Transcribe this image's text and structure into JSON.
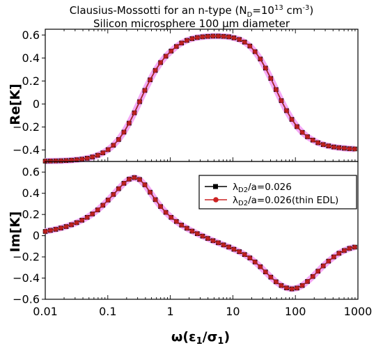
{
  "title_line1": "Clausius-Mossotti for an n-type (N",
  "title_line1_sub": "D",
  "title_line1_mid": "=10",
  "title_line1_sup": "13",
  "title_line1_end": " cm",
  "title_line1_sup2": "-3",
  "title_line1_close": ")",
  "title_line2": "Silicon microsphere 100 µm diameter",
  "colors": {
    "series1": "#000000",
    "series2": "#cc2222",
    "halo": "#f4a0f4"
  },
  "chart_data": [
    {
      "type": "line",
      "ylabel": "Re[K]",
      "xscale": "log",
      "xlim": [
        0.01,
        1000
      ],
      "ylim": [
        -0.5,
        0.65
      ],
      "yticks": [
        -0.4,
        -0.2,
        0,
        0.2,
        0.4,
        0.6
      ],
      "ytick_labels": [
        "−0.4",
        "−0.2",
        "0",
        "0.2",
        "0.4",
        "0.6"
      ],
      "x": [
        0.01,
        0.0121,
        0.0147,
        0.0178,
        0.0216,
        0.0262,
        0.0318,
        0.0386,
        0.0468,
        0.0568,
        0.0689,
        0.0835,
        0.101,
        0.123,
        0.149,
        0.181,
        0.219,
        0.266,
        0.323,
        0.391,
        0.475,
        0.576,
        0.698,
        0.847,
        1.03,
        1.25,
        1.51,
        1.84,
        2.23,
        2.7,
        3.28,
        3.97,
        4.82,
        5.85,
        7.1,
        8.61,
        10.4,
        12.7,
        15.4,
        18.7,
        22.6,
        27.5,
        33.3,
        40.4,
        49.0,
        59.5,
        72.2,
        87.6,
        106,
        129,
        156,
        190,
        230,
        279,
        339,
        411,
        498,
        605,
        733,
        890
      ],
      "series": [
        {
          "name": "λD2/a=0.026",
          "values": [
            -0.497,
            -0.496,
            -0.495,
            -0.494,
            -0.492,
            -0.489,
            -0.485,
            -0.48,
            -0.472,
            -0.461,
            -0.446,
            -0.425,
            -0.397,
            -0.359,
            -0.309,
            -0.245,
            -0.167,
            -0.077,
            0.02,
            0.118,
            0.21,
            0.292,
            0.36,
            0.415,
            0.46,
            0.5,
            0.53,
            0.553,
            0.568,
            0.578,
            0.584,
            0.588,
            0.59,
            0.59,
            0.588,
            0.584,
            0.575,
            0.561,
            0.538,
            0.504,
            0.455,
            0.391,
            0.312,
            0.222,
            0.125,
            0.029,
            -0.058,
            -0.134,
            -0.197,
            -0.247,
            -0.285,
            -0.314,
            -0.337,
            -0.353,
            -0.365,
            -0.374,
            -0.38,
            -0.385,
            -0.389,
            -0.391
          ]
        },
        {
          "name": "λD2/a=0.026(thin EDL)",
          "values": [
            -0.497,
            -0.496,
            -0.495,
            -0.494,
            -0.492,
            -0.489,
            -0.485,
            -0.48,
            -0.472,
            -0.461,
            -0.446,
            -0.425,
            -0.397,
            -0.359,
            -0.309,
            -0.245,
            -0.167,
            -0.077,
            0.02,
            0.118,
            0.21,
            0.292,
            0.36,
            0.415,
            0.46,
            0.5,
            0.53,
            0.553,
            0.568,
            0.578,
            0.584,
            0.588,
            0.59,
            0.59,
            0.588,
            0.584,
            0.575,
            0.561,
            0.538,
            0.504,
            0.455,
            0.391,
            0.312,
            0.222,
            0.125,
            0.029,
            -0.058,
            -0.134,
            -0.197,
            -0.247,
            -0.285,
            -0.314,
            -0.337,
            -0.353,
            -0.365,
            -0.374,
            -0.38,
            -0.385,
            -0.389,
            -0.391
          ]
        }
      ]
    },
    {
      "type": "line",
      "xlabel": "ω(ε1/σ1)",
      "ylabel": "Im[K]",
      "xscale": "log",
      "xlim": [
        0.01,
        1000
      ],
      "ylim": [
        -0.6,
        0.7
      ],
      "xticks": [
        0.01,
        0.1,
        1,
        10,
        100,
        1000
      ],
      "xtick_labels": [
        "0.01",
        "0.1",
        "1",
        "10",
        "100",
        "1000"
      ],
      "yticks": [
        -0.6,
        -0.4,
        -0.2,
        0,
        0.2,
        0.4,
        0.6
      ],
      "ytick_labels": [
        "−0.6",
        "−0.4",
        "−0.2",
        "0",
        "0.2",
        "0.4",
        "0.6"
      ],
      "legend": "top-right",
      "x": [
        0.01,
        0.0121,
        0.0147,
        0.0178,
        0.0216,
        0.0262,
        0.0318,
        0.0386,
        0.0468,
        0.0568,
        0.0689,
        0.0835,
        0.101,
        0.123,
        0.149,
        0.181,
        0.219,
        0.266,
        0.323,
        0.391,
        0.475,
        0.576,
        0.698,
        0.847,
        1.03,
        1.25,
        1.51,
        1.84,
        2.23,
        2.7,
        3.28,
        3.97,
        4.82,
        5.85,
        7.1,
        8.61,
        10.4,
        12.7,
        15.4,
        18.7,
        22.6,
        27.5,
        33.3,
        40.4,
        49.0,
        59.5,
        72.2,
        87.6,
        106,
        129,
        156,
        190,
        230,
        279,
        339,
        411,
        498,
        605,
        733,
        890
      ],
      "series": [
        {
          "name": "λD2/a=0.026",
          "values": [
            0.04,
            0.05,
            0.06,
            0.072,
            0.086,
            0.103,
            0.123,
            0.146,
            0.173,
            0.205,
            0.243,
            0.287,
            0.336,
            0.389,
            0.443,
            0.494,
            0.533,
            0.548,
            0.53,
            0.48,
            0.41,
            0.34,
            0.275,
            0.22,
            0.173,
            0.134,
            0.1,
            0.07,
            0.043,
            0.019,
            -0.004,
            -0.026,
            -0.047,
            -0.067,
            -0.087,
            -0.107,
            -0.128,
            -0.151,
            -0.178,
            -0.21,
            -0.248,
            -0.293,
            -0.342,
            -0.391,
            -0.435,
            -0.47,
            -0.493,
            -0.502,
            -0.494,
            -0.47,
            -0.432,
            -0.385,
            -0.335,
            -0.285,
            -0.24,
            -0.2,
            -0.166,
            -0.14,
            -0.12,
            -0.108
          ]
        },
        {
          "name": "λD2/a=0.026(thin EDL)",
          "values": [
            0.04,
            0.05,
            0.06,
            0.072,
            0.086,
            0.103,
            0.123,
            0.146,
            0.173,
            0.205,
            0.243,
            0.287,
            0.336,
            0.389,
            0.443,
            0.494,
            0.533,
            0.548,
            0.53,
            0.48,
            0.41,
            0.34,
            0.275,
            0.22,
            0.173,
            0.134,
            0.1,
            0.07,
            0.043,
            0.019,
            -0.004,
            -0.026,
            -0.047,
            -0.067,
            -0.087,
            -0.107,
            -0.128,
            -0.151,
            -0.178,
            -0.21,
            -0.248,
            -0.293,
            -0.342,
            -0.391,
            -0.435,
            -0.47,
            -0.493,
            -0.502,
            -0.494,
            -0.47,
            -0.432,
            -0.385,
            -0.335,
            -0.285,
            -0.24,
            -0.2,
            -0.166,
            -0.14,
            -0.12,
            -0.108
          ]
        }
      ]
    }
  ]
}
